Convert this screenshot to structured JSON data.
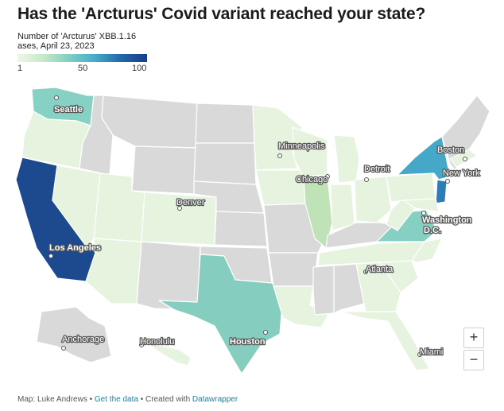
{
  "title": "Has the 'Arcturus' Covid variant reached your state?",
  "legend": {
    "title_line1": "Number of 'Arcturus' XBB.1.16",
    "title_line2": "ases, April 23, 2023",
    "min_label": "1",
    "mid_label": "50",
    "max_label": "100",
    "colors": [
      "#eef7e7",
      "#c6e8c8",
      "#7fcfc0",
      "#45aacc",
      "#2467a8",
      "#183f89"
    ]
  },
  "state_fill": {
    "California": "#1d4a8f",
    "New York": "#45a8c8",
    "New Jersey": "#2e7cb8",
    "Washington": "#86d1c4",
    "Texas": "#85cdbe",
    "Virginia": "#86cfc3",
    "Illinois": "#bfe3b6",
    "no_data": "#d9d9d9",
    "low": "#e6f3df"
  },
  "cities": [
    {
      "name": "Seattle"
    },
    {
      "name": "Minneapolis"
    },
    {
      "name": "Boston"
    },
    {
      "name": "Detroit"
    },
    {
      "name": "Chicago"
    },
    {
      "name": "New York"
    },
    {
      "name": "Denver"
    },
    {
      "name": "Washington"
    },
    {
      "name": "D.C."
    },
    {
      "name": "Los Angeles"
    },
    {
      "name": "Atlanta"
    },
    {
      "name": "Anchorage"
    },
    {
      "name": "Honolulu"
    },
    {
      "name": "Houston"
    },
    {
      "name": "Miami"
    }
  ],
  "zoom": {
    "in_label": "+",
    "out_label": "−"
  },
  "footer": {
    "credit": "Map: Luke Andrews • ",
    "data_link": "Get the data",
    "middle": " • Created with ",
    "tool_link": "Datawrapper"
  }
}
